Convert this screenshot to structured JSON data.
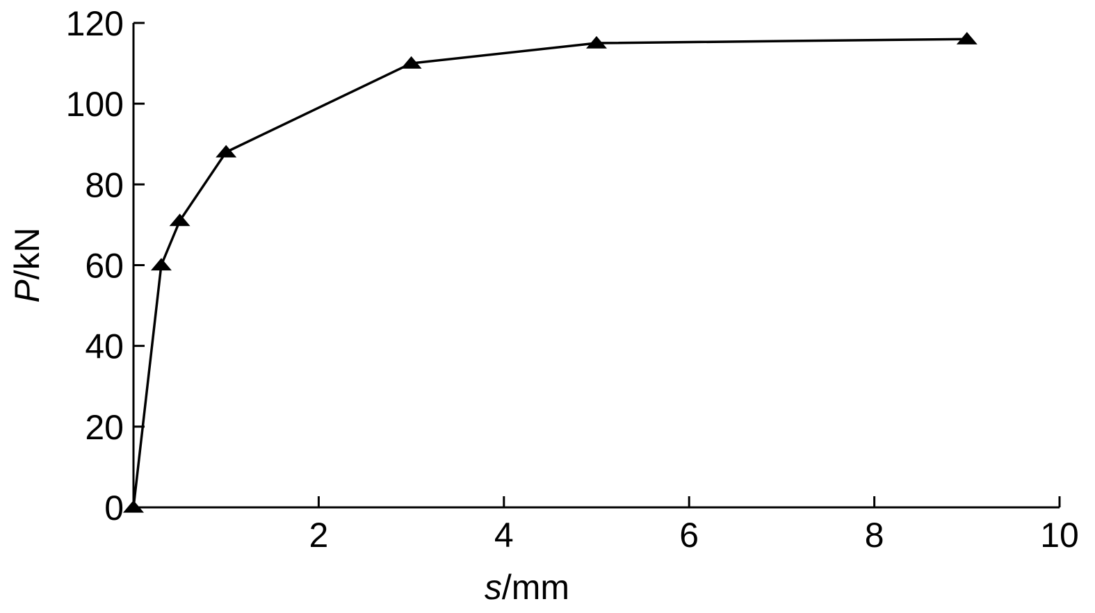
{
  "chart_data": {
    "type": "line",
    "xlabel_var": "s",
    "xlabel_unit": "/mm",
    "ylabel_var": "P",
    "ylabel_unit": "/kN",
    "xlim": [
      0,
      10
    ],
    "ylim": [
      0,
      120
    ],
    "x_ticks": [
      2,
      4,
      6,
      8,
      10
    ],
    "x_tick_labels": [
      "2",
      "4",
      "6",
      "8",
      "10"
    ],
    "y_ticks": [
      0,
      20,
      40,
      60,
      80,
      100,
      120
    ],
    "y_tick_labels": [
      "0",
      "20",
      "40",
      "60",
      "80",
      "100",
      "120"
    ],
    "grid": false,
    "marker": "triangle",
    "line_color": "#000000",
    "series": [
      {
        "x": [
          0,
          0.3,
          0.5,
          1.0,
          3.0,
          5.0,
          9.0
        ],
        "y": [
          0,
          60,
          71,
          88,
          110,
          115,
          116
        ]
      }
    ]
  }
}
